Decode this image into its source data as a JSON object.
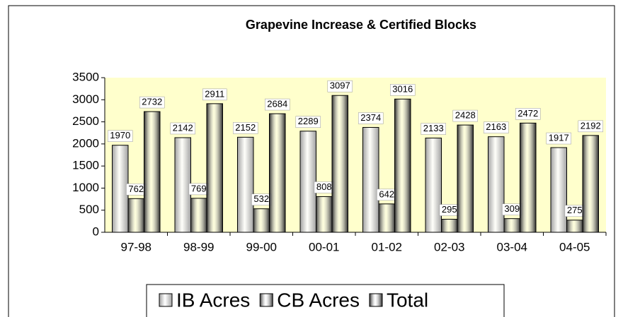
{
  "chart_data": {
    "type": "bar",
    "title": "Grapevine Increase & Certified Blocks",
    "categories": [
      "97-98",
      "98-99",
      "99-00",
      "00-01",
      "01-02",
      "02-03",
      "03-04",
      "04-05"
    ],
    "series": [
      {
        "name": "IB Acres",
        "color": "#a0a0a0",
        "values": [
          1970,
          2142,
          2152,
          2289,
          2374,
          2133,
          2163,
          1917
        ]
      },
      {
        "name": "CB Acres",
        "color": "#3a3a3a",
        "values": [
          762,
          769,
          532,
          808,
          642,
          295,
          309,
          275
        ]
      },
      {
        "name": "Total",
        "color": "#2a2a2a",
        "values": [
          2732,
          2911,
          2684,
          3097,
          3016,
          2428,
          2472,
          2192
        ]
      }
    ],
    "ylim": [
      0,
      3500
    ],
    "yticks": [
      0,
      500,
      1000,
      1500,
      2000,
      2500,
      3000,
      3500
    ],
    "legend": "bottom"
  }
}
